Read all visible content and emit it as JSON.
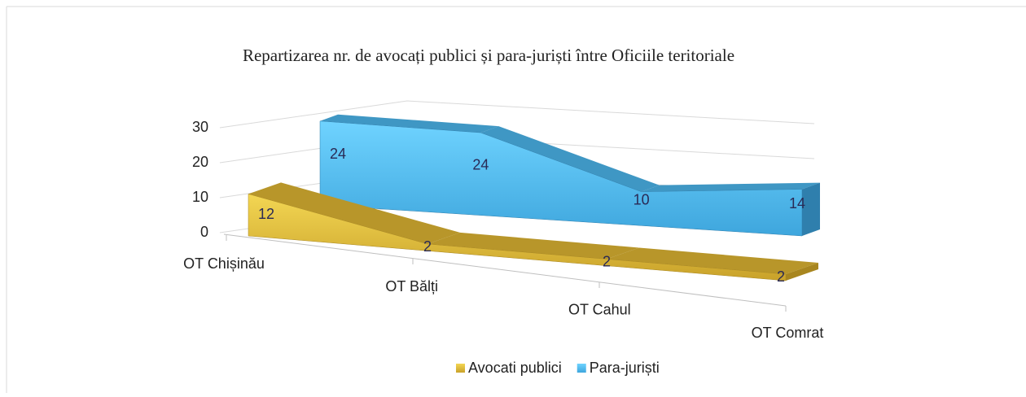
{
  "chart_data": {
    "type": "area3d",
    "title": "Repartizarea nr. de avocați publici și para-juriști între Oficiile teritoriale",
    "categories": [
      "OT Chișinău",
      "OT Bălți",
      "OT Cahul",
      "OT Comrat"
    ],
    "series": [
      {
        "name": "Avocati publici",
        "color": "#e8c53a",
        "values": [
          12,
          2,
          2,
          2
        ]
      },
      {
        "name": "Para-juriști",
        "color": "#5ac8f5",
        "values": [
          24,
          24,
          10,
          14
        ]
      }
    ],
    "ylim": [
      0,
      30
    ],
    "yticks": [
      0,
      10,
      20,
      30
    ],
    "grid": true,
    "legend": "bottom"
  }
}
